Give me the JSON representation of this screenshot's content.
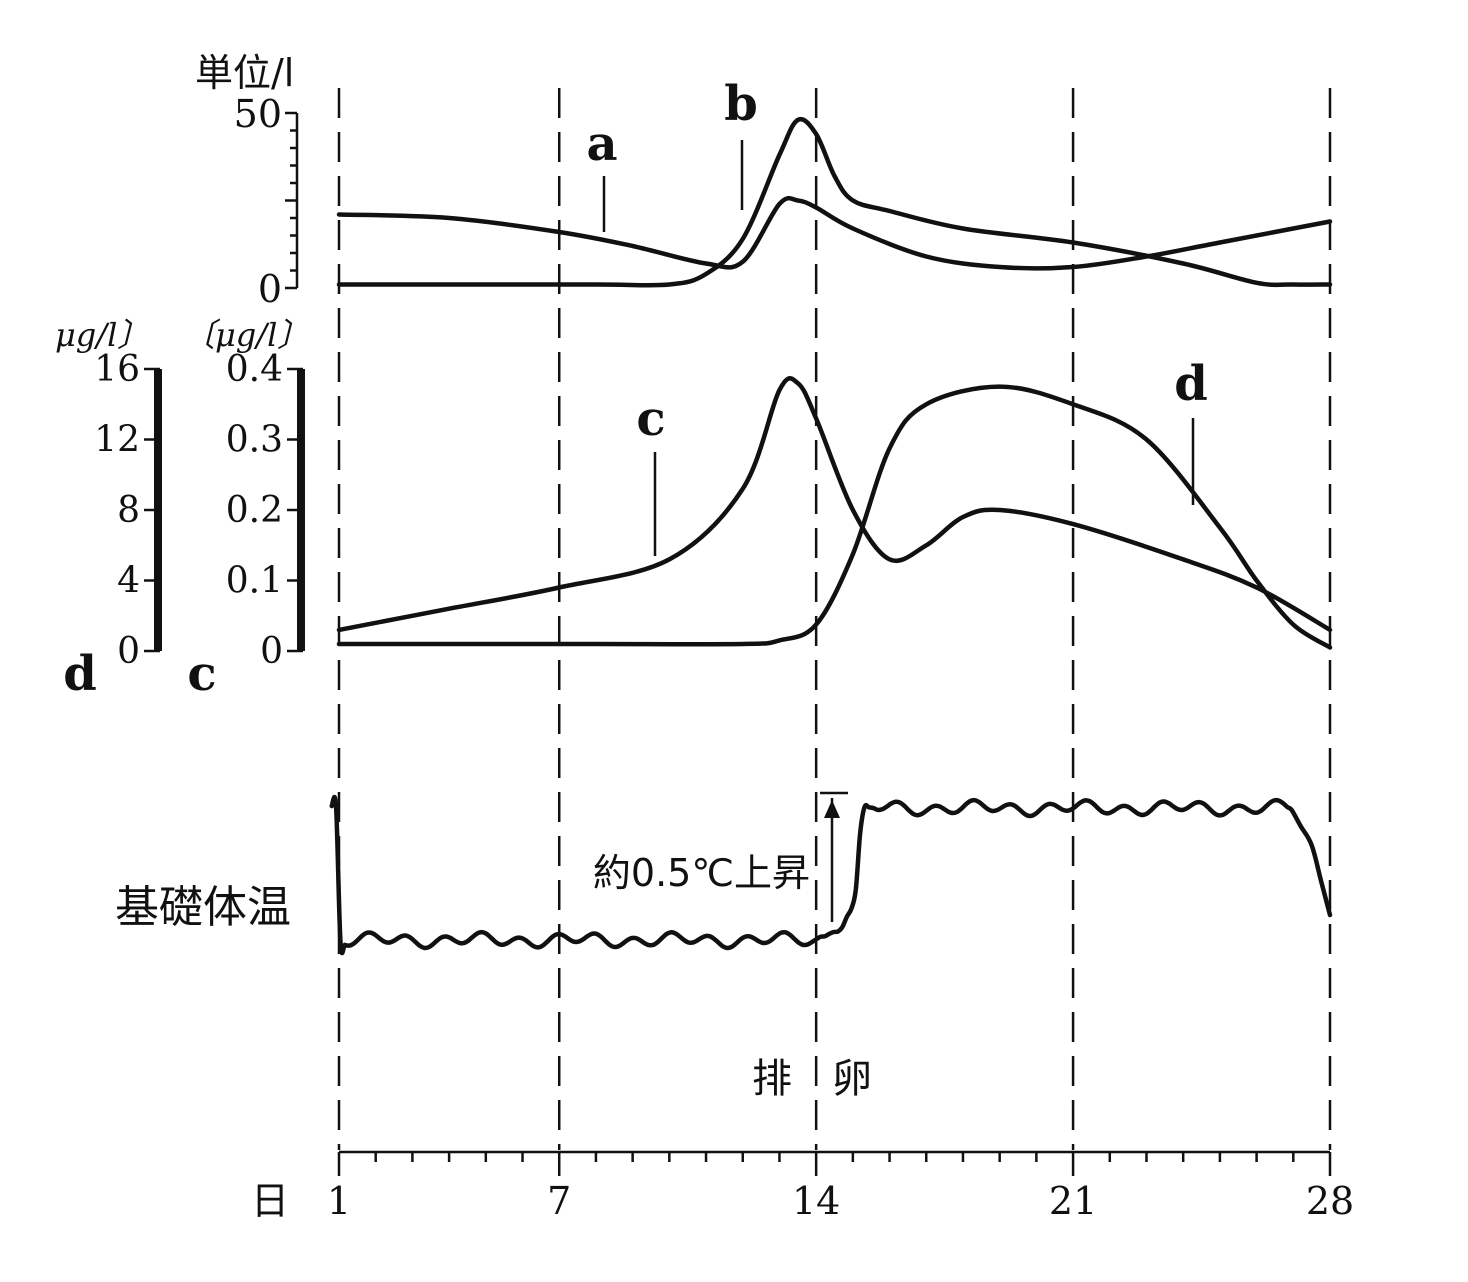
{
  "chart_data": [
    {
      "panel": "top",
      "type": "line",
      "ylabel": "単位/l",
      "ylim": [
        0,
        50
      ],
      "yticks": [
        "0",
        "50"
      ],
      "series": [
        {
          "name": "a",
          "x": [
            1,
            4,
            7,
            9,
            11,
            12,
            13,
            13.5,
            14,
            15,
            17,
            19,
            21,
            23,
            25,
            28
          ],
          "values": [
            21,
            20,
            16,
            12,
            7,
            7.5,
            24,
            25,
            23,
            17,
            9,
            6,
            6,
            9,
            13,
            19
          ]
        },
        {
          "name": "b",
          "x": [
            1,
            4,
            8,
            10,
            11,
            12,
            13,
            13.5,
            14,
            14.5,
            15,
            16,
            18,
            21,
            24,
            26,
            27,
            28
          ],
          "values": [
            1,
            1,
            1,
            1,
            4,
            14,
            38,
            48,
            44,
            32,
            25,
            22,
            17,
            13,
            7,
            1.5,
            1,
            1
          ]
        }
      ]
    },
    {
      "panel": "middle",
      "type": "line",
      "axes": [
        {
          "id": "d",
          "unit": "μg/l〕",
          "ylim": [
            0,
            16
          ],
          "ticks": [
            "0",
            "4",
            "8",
            "12",
            "16"
          ],
          "label": "d"
        },
        {
          "id": "c",
          "unit": "〔μg/l〕",
          "ylim": [
            0,
            0.4
          ],
          "ticks": [
            "0",
            "0.1",
            "0.2",
            "0.3",
            "0.4"
          ],
          "label": "c"
        }
      ],
      "series": [
        {
          "name": "c",
          "axis": "c",
          "x": [
            1,
            4,
            7,
            10,
            12,
            13,
            13.5,
            14,
            15,
            16,
            17,
            18,
            19,
            21,
            24,
            26,
            28
          ],
          "values": [
            0.03,
            0.06,
            0.09,
            0.13,
            0.23,
            0.37,
            0.38,
            0.33,
            0.2,
            0.13,
            0.15,
            0.19,
            0.2,
            0.18,
            0.13,
            0.09,
            0.03
          ]
        },
        {
          "name": "d",
          "axis": "d",
          "x": [
            1,
            5,
            8,
            12,
            13,
            14,
            15,
            16,
            17,
            19,
            21,
            23,
            25,
            26,
            27,
            28
          ],
          "values": [
            0.4,
            0.4,
            0.4,
            0.4,
            0.6,
            1.5,
            5.5,
            11.5,
            14,
            15,
            14,
            12,
            7,
            4,
            1.5,
            0.2
          ]
        }
      ]
    },
    {
      "panel": "bottom",
      "type": "line",
      "ylabel": "基礎体温",
      "annotation": "約0.5℃上昇",
      "event_label": "排　卵",
      "series": [
        {
          "name": "基礎体温",
          "x": [
            1,
            14,
            14.6,
            15,
            15.3,
            28
          ],
          "values": [
            0,
            0,
            0.5,
            1.6,
            6.6,
            6.6
          ]
        }
      ]
    }
  ],
  "x_axis": {
    "label": "日",
    "ticks": [
      "1",
      "7",
      "14",
      "21",
      "28"
    ],
    "xlim": [
      1,
      28
    ],
    "reference_days": [
      1,
      7,
      14,
      21,
      28
    ]
  },
  "labels": {
    "a": "a",
    "b": "b",
    "c": "c",
    "d": "d"
  }
}
